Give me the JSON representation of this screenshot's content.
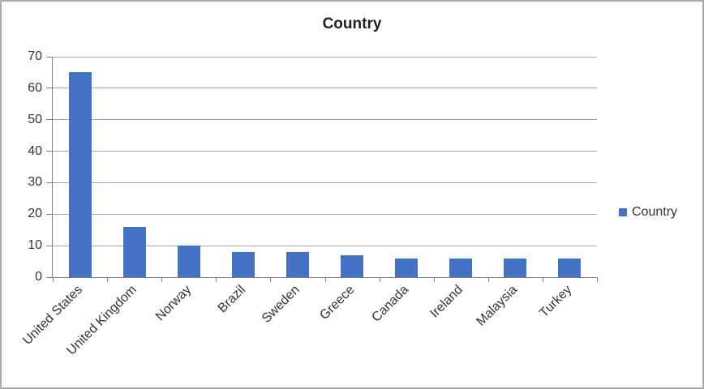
{
  "chart_data": {
    "type": "bar",
    "title": "Country",
    "categories": [
      "United States",
      "United Kingdom",
      "Norway",
      "Brazil",
      "Sweden",
      "Greece",
      "Canada",
      "Ireland",
      "Malaysia",
      "Turkey"
    ],
    "series": [
      {
        "name": "Country",
        "color": "#4472C4",
        "values": [
          65,
          16,
          10,
          8,
          8,
          7,
          6,
          6,
          6,
          6
        ]
      }
    ],
    "ylim": [
      0,
      70
    ],
    "yticks": [
      0,
      10,
      20,
      30,
      40,
      50,
      60,
      70
    ],
    "xlabel": "",
    "ylabel": "",
    "grid": "horizontal",
    "legend_position": "right",
    "colors": {
      "bar": "#4472C4",
      "gridline": "#a3a3a3",
      "axis": "#808080",
      "text": "#333333",
      "title": "#1f1f1f"
    }
  }
}
